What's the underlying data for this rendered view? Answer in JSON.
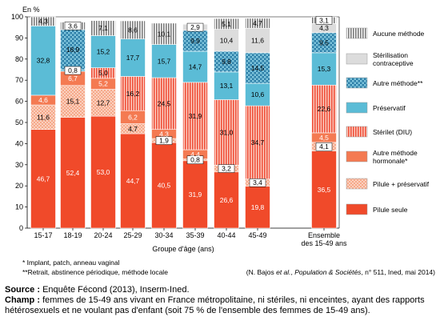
{
  "chart_data": {
    "type": "bar",
    "stacked": true,
    "y_unit_label": "En %",
    "xlabel": "Groupe d'âge (ans)",
    "ylim": [
      0,
      100
    ],
    "yticks": [
      0,
      10,
      20,
      30,
      40,
      50,
      60,
      70,
      80,
      90,
      100
    ],
    "categories": [
      "15-17",
      "18-19",
      "20-24",
      "25-29",
      "30-34",
      "35-39",
      "40-44",
      "45-49",
      "Ensemble des 15-49 ans"
    ],
    "series": [
      {
        "name": "Pilule seule",
        "color": "#f04a2a",
        "pattern": "solid",
        "values": [
          46.7,
          52.4,
          53.0,
          44.7,
          40.5,
          31.9,
          26.6,
          19.8,
          36.5
        ]
      },
      {
        "name": "Pilule + préservatif",
        "color": "#f6a98a",
        "pattern": "dots",
        "values": [
          11.6,
          15.1,
          12.7,
          4.7,
          1.9,
          0.8,
          3.2,
          3.4,
          4.1
        ]
      },
      {
        "name": "Autre méthode hormonale*",
        "color": "#f47a52",
        "pattern": "solid",
        "values": [
          4.6,
          6.7,
          5.2,
          6.2,
          4.3,
          4.4,
          0,
          0,
          4.5
        ]
      },
      {
        "name": "Stérilet (DIU)",
        "color": "#f4604a",
        "pattern": "vlines",
        "values": [
          0,
          0,
          5.0,
          16.2,
          24.5,
          31.9,
          31.0,
          34.7,
          22.6
        ]
      },
      {
        "name": "Préservatif",
        "color": "#5bbcd6",
        "pattern": "solid",
        "values": [
          32.8,
          0.8,
          15.2,
          17.7,
          15.7,
          14.7,
          13.1,
          10.6,
          15.3
        ]
      },
      {
        "name": "Autre méthode**",
        "color": "#2e7fa8",
        "pattern": "checker",
        "values": [
          0,
          18.9,
          0,
          0,
          0,
          9.9,
          9.8,
          14.5,
          9.5
        ]
      },
      {
        "name": "Stérilisation contraceptive",
        "color": "#dcdcdc",
        "pattern": "solid",
        "values": [
          0,
          0,
          0,
          0,
          0,
          2.9,
          10.4,
          11.6,
          4.3
        ]
      },
      {
        "name": "Aucune méthode",
        "color": "#8a8a8a",
        "pattern": "vlines",
        "values": [
          4.3,
          3.6,
          7.1,
          8.6,
          10.1,
          0,
          5.1,
          4.7,
          3.1
        ]
      }
    ],
    "data_labels": [
      [
        "46,7",
        "11,6",
        "4,6",
        "",
        "32,8",
        "",
        "",
        "4,3"
      ],
      [
        "52,4",
        "15,1",
        "6,7",
        "",
        "0,8",
        "18,9",
        "",
        "3,6"
      ],
      [
        "53,0",
        "12,7",
        "5,2",
        "5,0",
        "15,2",
        "",
        "",
        "7,1"
      ],
      [
        "44,7",
        "4,7",
        "6,2",
        "16,2",
        "17,7",
        "",
        "",
        "8,6"
      ],
      [
        "40,5",
        "1,9",
        "4,3",
        "24,5",
        "15,7",
        "",
        "",
        "10,1"
      ],
      [
        "31,9",
        "0,8",
        "4,4",
        "31,9",
        "14,7",
        "9,9",
        "2,9",
        ""
      ],
      [
        "26,6",
        "3,2",
        "",
        "31,0",
        "13,1",
        "9,8",
        "10,4",
        "5,1"
      ],
      [
        "19,8",
        "3,4",
        "",
        "34,7",
        "10,6",
        "14,5",
        "11,6",
        "4,7"
      ],
      [
        "36,5",
        "4,1",
        "4,5",
        "22,6",
        "15,3",
        "9,5",
        "4,3",
        "3,1"
      ]
    ],
    "legend": [
      "Aucune méthode",
      "Stérilisation contraceptive",
      "Autre méthode**",
      "Préservatif",
      "Stérilet (DIU)",
      "Autre méthode hormonale*",
      "Pilule + préservatif",
      "Pilule seule"
    ],
    "legend_position": "right",
    "grid": false
  },
  "notes": {
    "footnote1": "* Implant, patch, anneau vaginal",
    "footnote2": "**Retrait, abstinence périodique, méthode locale",
    "citation": "(N. Bajos et al., Population & Sociétés, n° 511, Ined, mai 2014)"
  },
  "source": {
    "source_label": "Source :",
    "source_text": "Enquête Fécond (2013), Inserm-Ined.",
    "champ_label": "Champ :",
    "champ_text": "femmes de 15-49 ans vivant en France métropolitaine, ni stériles, ni enceintes, ayant des rapports hétérosexuels et ne voulant pas d'enfant (soit 75 % de l'ensemble des femmes de 15-49 ans)."
  }
}
